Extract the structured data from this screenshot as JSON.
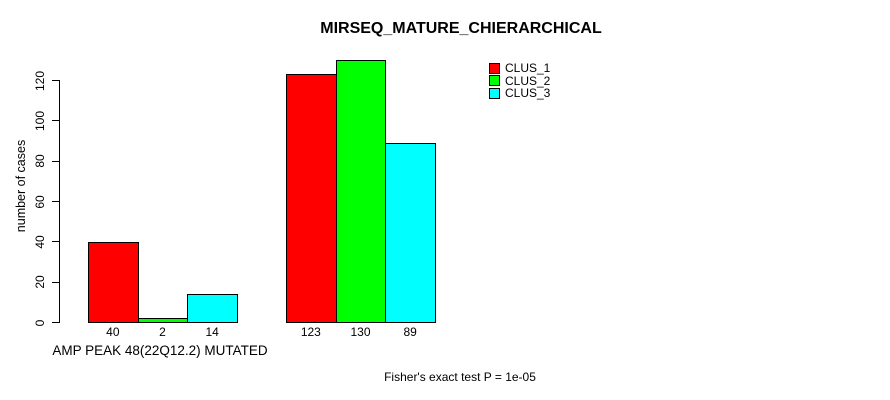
{
  "chart_data": {
    "type": "bar",
    "title": "MIRSEQ_MATURE_CHIERARCHICAL",
    "ylabel": "number of cases",
    "xlabel": "AMP PEAK 48(22Q12.2) MUTATED",
    "footnote": "Fisher's exact test P = 1e-05",
    "series": [
      {
        "name": "CLUS_1",
        "color": "#FF0000",
        "values": [
          40,
          123
        ]
      },
      {
        "name": "CLUS_2",
        "color": "#00FF00",
        "values": [
          2,
          130
        ]
      },
      {
        "name": "CLUS_3",
        "color": "#00FFFF",
        "values": [
          14,
          89
        ]
      }
    ],
    "group_count": 2,
    "bar_value_labels": [
      [
        40,
        2,
        14
      ],
      [
        123,
        130,
        89
      ]
    ],
    "yticks": [
      0,
      20,
      40,
      60,
      80,
      100,
      120
    ],
    "ylim": [
      0,
      130
    ],
    "grid": false,
    "legend_position": "top-right",
    "colors": {
      "clus_1": "#FF0000",
      "clus_2": "#00FF00",
      "clus_3": "#00FFFF",
      "axis": "#000000",
      "background": "#FFFFFF"
    }
  }
}
